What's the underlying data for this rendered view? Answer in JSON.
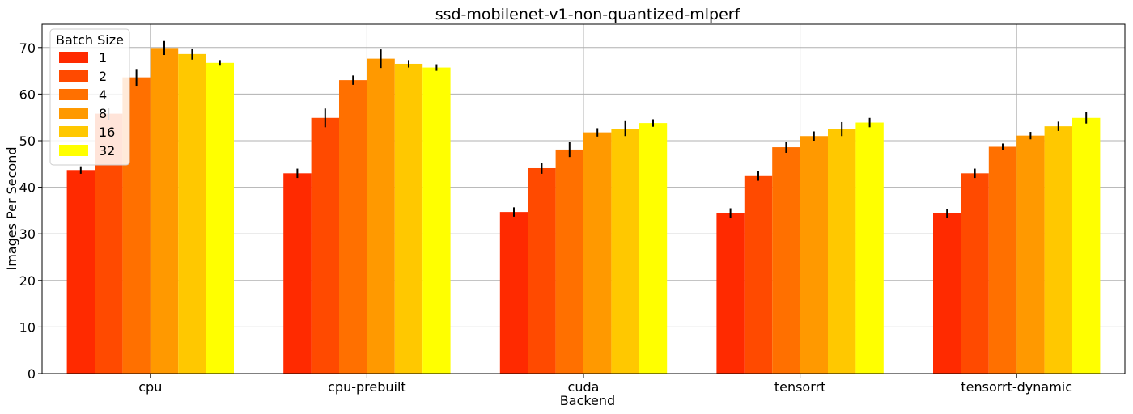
{
  "chart_data": {
    "type": "bar",
    "title": "ssd-mobilenet-v1-non-quantized-mlperf",
    "xlabel": "Backend",
    "ylabel": "Images Per Second",
    "ylim": [
      0,
      75
    ],
    "yticks": [
      0,
      10,
      20,
      30,
      40,
      50,
      60,
      70
    ],
    "grid": true,
    "legend": {
      "title": "Batch Size",
      "placement": "top-left"
    },
    "categories": [
      "cpu",
      "cpu-prebuilt",
      "cuda",
      "tensorrt",
      "tensorrt-dynamic"
    ],
    "series": [
      {
        "name": "1",
        "color": "#ff2a00",
        "values": [
          43.7,
          43.0,
          34.7,
          34.5,
          34.4
        ],
        "errors": [
          0.8,
          1.0,
          1.0,
          1.0,
          1.0
        ]
      },
      {
        "name": "2",
        "color": "#ff4a00",
        "values": [
          55.8,
          54.9,
          44.1,
          42.4,
          43.0
        ],
        "errors": [
          1.3,
          2.0,
          1.2,
          1.0,
          1.0
        ]
      },
      {
        "name": "4",
        "color": "#ff7000",
        "values": [
          63.6,
          63.0,
          48.1,
          48.6,
          48.7
        ],
        "errors": [
          1.8,
          1.0,
          1.6,
          1.2,
          0.7
        ]
      },
      {
        "name": "8",
        "color": "#ff9900",
        "values": [
          69.9,
          67.6,
          51.8,
          51.0,
          51.1
        ],
        "errors": [
          1.5,
          2.0,
          0.9,
          1.0,
          0.8
        ]
      },
      {
        "name": "16",
        "color": "#ffc800",
        "values": [
          68.6,
          66.5,
          52.6,
          52.5,
          53.1
        ],
        "errors": [
          1.2,
          0.8,
          1.6,
          1.5,
          1.0
        ]
      },
      {
        "name": "32",
        "color": "#ffff00",
        "values": [
          66.7,
          65.7,
          53.8,
          53.9,
          54.9
        ],
        "errors": [
          0.6,
          0.7,
          0.8,
          1.0,
          1.2
        ]
      }
    ]
  }
}
